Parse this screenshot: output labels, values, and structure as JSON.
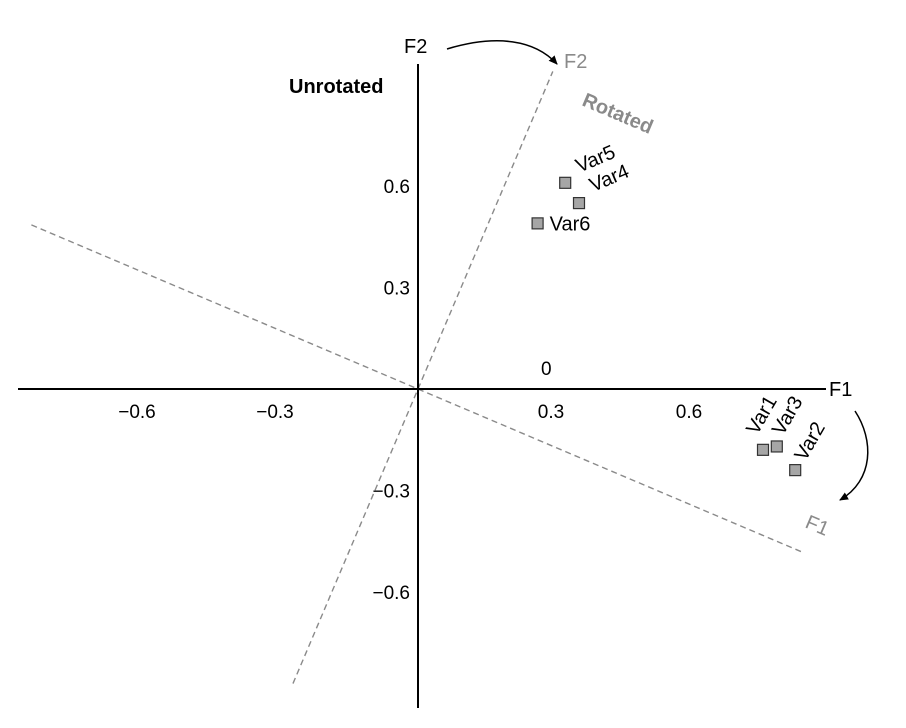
{
  "chart_data": {
    "type": "scatter",
    "title": "Unrotated",
    "rotated_label": "Rotated",
    "x_axis_name": "F1",
    "y_axis_name": "F2",
    "rotated_x_axis_name": "F1",
    "rotated_y_axis_name": "F2",
    "origin_label": "0",
    "xlim": [
      -0.9,
      0.9
    ],
    "ylim": [
      -0.68,
      0.68
    ],
    "x_ticks": [
      {
        "value": -0.6,
        "label": "−0.6"
      },
      {
        "value": -0.3,
        "label": "−0.3"
      },
      {
        "value": 0.3,
        "label": "0.3"
      },
      {
        "value": 0.6,
        "label": "0.6"
      }
    ],
    "y_ticks": [
      {
        "value": 0.6,
        "label": "0.6"
      },
      {
        "value": 0.3,
        "label": "0.3"
      },
      {
        "value": -0.3,
        "label": "−0.3"
      },
      {
        "value": -0.6,
        "label": "−0.6"
      }
    ],
    "rotation_degrees": 23,
    "points": [
      {
        "name": "Var1",
        "x": 0.75,
        "y": -0.18
      },
      {
        "name": "Var2",
        "x": 0.82,
        "y": -0.24
      },
      {
        "name": "Var3",
        "x": 0.78,
        "y": -0.17
      },
      {
        "name": "Var4",
        "x": 0.35,
        "y": 0.55
      },
      {
        "name": "Var5",
        "x": 0.32,
        "y": 0.61
      },
      {
        "name": "Var6",
        "x": 0.26,
        "y": 0.49
      }
    ],
    "grid": false,
    "legend": "none",
    "colors": {
      "axis": "#000000",
      "rotated_axis": "#8a8a8a",
      "rotated_text": "#8a8a8a",
      "marker_fill": "#a6a6a6",
      "marker_stroke": "#333333"
    }
  }
}
